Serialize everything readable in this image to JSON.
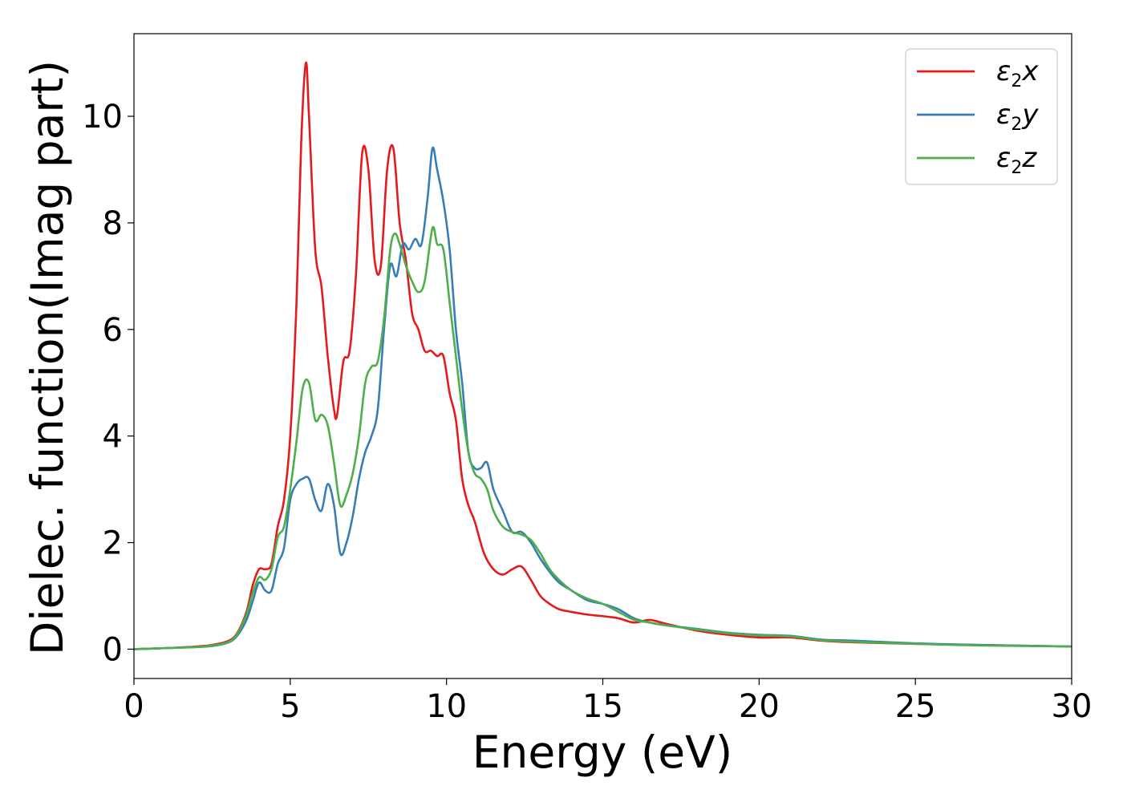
{
  "chart_data": {
    "type": "line",
    "title": "",
    "xlabel": "Energy (eV)",
    "ylabel": "Dielec. function(Imag part)",
    "xlim": [
      0,
      30
    ],
    "ylim": [
      -0.55,
      11.55
    ],
    "xticks": [
      "0",
      "5",
      "10",
      "15",
      "20",
      "25",
      "30"
    ],
    "yticks": [
      "0",
      "2",
      "4",
      "6",
      "8",
      "10"
    ],
    "grid": false,
    "legend_position": "top-right",
    "series": [
      {
        "name": "ε2x",
        "label_base": "ε",
        "label_sub": "2",
        "label_var": "x",
        "color": "#e41a1c",
        "x": [
          0,
          1,
          2,
          2.5,
          3,
          3.3,
          3.6,
          3.8,
          4.0,
          4.2,
          4.4,
          4.6,
          4.8,
          5.0,
          5.2,
          5.35,
          5.5,
          5.6,
          5.8,
          6.0,
          6.2,
          6.4,
          6.5,
          6.7,
          6.9,
          7.1,
          7.3,
          7.5,
          7.7,
          7.9,
          8.1,
          8.3,
          8.5,
          8.7,
          8.9,
          9.1,
          9.3,
          9.5,
          9.7,
          9.9,
          10.1,
          10.3,
          10.5,
          10.7,
          10.9,
          11.2,
          11.5,
          11.8,
          12.1,
          12.4,
          12.7,
          13.0,
          13.3,
          13.6,
          14,
          14.5,
          15,
          15.5,
          16,
          16.5,
          17,
          18,
          19,
          20,
          21,
          22,
          23,
          25,
          27,
          30
        ],
        "y": [
          0.0,
          0.02,
          0.05,
          0.08,
          0.15,
          0.3,
          0.7,
          1.2,
          1.5,
          1.5,
          1.6,
          2.3,
          2.8,
          4.0,
          6.5,
          9.5,
          11.0,
          10.0,
          7.5,
          6.8,
          5.5,
          4.5,
          4.4,
          5.4,
          5.6,
          7.0,
          9.3,
          9.0,
          7.3,
          7.2,
          9.0,
          9.4,
          8.0,
          7.3,
          6.3,
          6.0,
          5.6,
          5.6,
          5.5,
          5.5,
          4.8,
          4.3,
          3.2,
          2.7,
          2.4,
          1.8,
          1.5,
          1.4,
          1.5,
          1.55,
          1.3,
          1.0,
          0.85,
          0.75,
          0.7,
          0.65,
          0.62,
          0.58,
          0.5,
          0.55,
          0.48,
          0.35,
          0.27,
          0.22,
          0.22,
          0.16,
          0.13,
          0.1,
          0.08,
          0.05
        ]
      },
      {
        "name": "ε2y",
        "label_base": "ε",
        "label_sub": "2",
        "label_var": "y",
        "color": "#377eb8",
        "x": [
          0,
          1,
          2,
          2.5,
          3,
          3.3,
          3.6,
          3.8,
          4.0,
          4.2,
          4.4,
          4.6,
          4.8,
          5.0,
          5.2,
          5.4,
          5.6,
          5.8,
          6.0,
          6.2,
          6.4,
          6.6,
          6.8,
          7.0,
          7.2,
          7.4,
          7.6,
          7.8,
          8.0,
          8.2,
          8.4,
          8.6,
          8.8,
          9.0,
          9.2,
          9.4,
          9.55,
          9.7,
          9.9,
          10.1,
          10.3,
          10.5,
          10.7,
          10.9,
          11.1,
          11.3,
          11.5,
          11.8,
          12.1,
          12.4,
          12.7,
          13.0,
          13.3,
          13.6,
          14,
          14.5,
          15,
          15.5,
          16,
          16.5,
          17,
          18,
          19,
          20,
          21,
          22,
          23,
          25,
          27,
          30
        ],
        "y": [
          0.0,
          0.02,
          0.04,
          0.06,
          0.12,
          0.25,
          0.55,
          0.9,
          1.25,
          1.1,
          1.1,
          1.6,
          1.9,
          2.8,
          3.1,
          3.2,
          3.2,
          2.8,
          2.6,
          3.1,
          2.7,
          1.8,
          2.0,
          2.5,
          3.2,
          3.7,
          4.0,
          4.5,
          6.0,
          7.2,
          7.0,
          7.6,
          7.5,
          7.7,
          7.6,
          8.5,
          9.4,
          9.0,
          8.4,
          7.5,
          6.0,
          5.0,
          3.7,
          3.4,
          3.4,
          3.5,
          3.0,
          2.6,
          2.2,
          2.2,
          2.0,
          1.7,
          1.45,
          1.25,
          1.1,
          0.92,
          0.85,
          0.75,
          0.58,
          0.5,
          0.45,
          0.38,
          0.31,
          0.27,
          0.25,
          0.18,
          0.16,
          0.11,
          0.08,
          0.05
        ]
      },
      {
        "name": "ε2z",
        "label_base": "ε",
        "label_sub": "2",
        "label_var": "z",
        "color": "#4daf4a",
        "x": [
          0,
          1,
          2,
          2.5,
          3,
          3.3,
          3.6,
          3.8,
          4.0,
          4.2,
          4.4,
          4.6,
          4.8,
          5.0,
          5.2,
          5.4,
          5.6,
          5.8,
          6.0,
          6.2,
          6.4,
          6.6,
          6.8,
          7.0,
          7.2,
          7.4,
          7.6,
          7.8,
          8.0,
          8.2,
          8.35,
          8.5,
          8.7,
          8.9,
          9.1,
          9.3,
          9.55,
          9.7,
          9.9,
          10.1,
          10.3,
          10.5,
          10.7,
          10.9,
          11.1,
          11.3,
          11.5,
          11.8,
          12.1,
          12.4,
          12.7,
          13.0,
          13.3,
          13.6,
          14,
          14.5,
          15,
          15.5,
          16,
          16.5,
          17,
          18,
          19,
          20,
          21,
          22,
          23,
          25,
          27,
          30
        ],
        "y": [
          0.0,
          0.02,
          0.04,
          0.07,
          0.13,
          0.28,
          0.65,
          1.05,
          1.35,
          1.3,
          1.5,
          2.1,
          2.3,
          3.0,
          3.9,
          4.9,
          5.0,
          4.3,
          4.4,
          4.2,
          3.5,
          2.7,
          2.9,
          3.3,
          4.0,
          5.0,
          5.3,
          5.4,
          6.2,
          7.5,
          7.8,
          7.6,
          7.2,
          6.9,
          6.7,
          6.9,
          7.9,
          7.6,
          7.5,
          6.5,
          5.5,
          4.5,
          3.7,
          3.3,
          3.2,
          3.0,
          2.6,
          2.3,
          2.2,
          2.15,
          2.05,
          1.8,
          1.5,
          1.3,
          1.1,
          0.95,
          0.85,
          0.7,
          0.55,
          0.5,
          0.45,
          0.37,
          0.3,
          0.26,
          0.24,
          0.17,
          0.14,
          0.1,
          0.07,
          0.05
        ]
      }
    ]
  }
}
